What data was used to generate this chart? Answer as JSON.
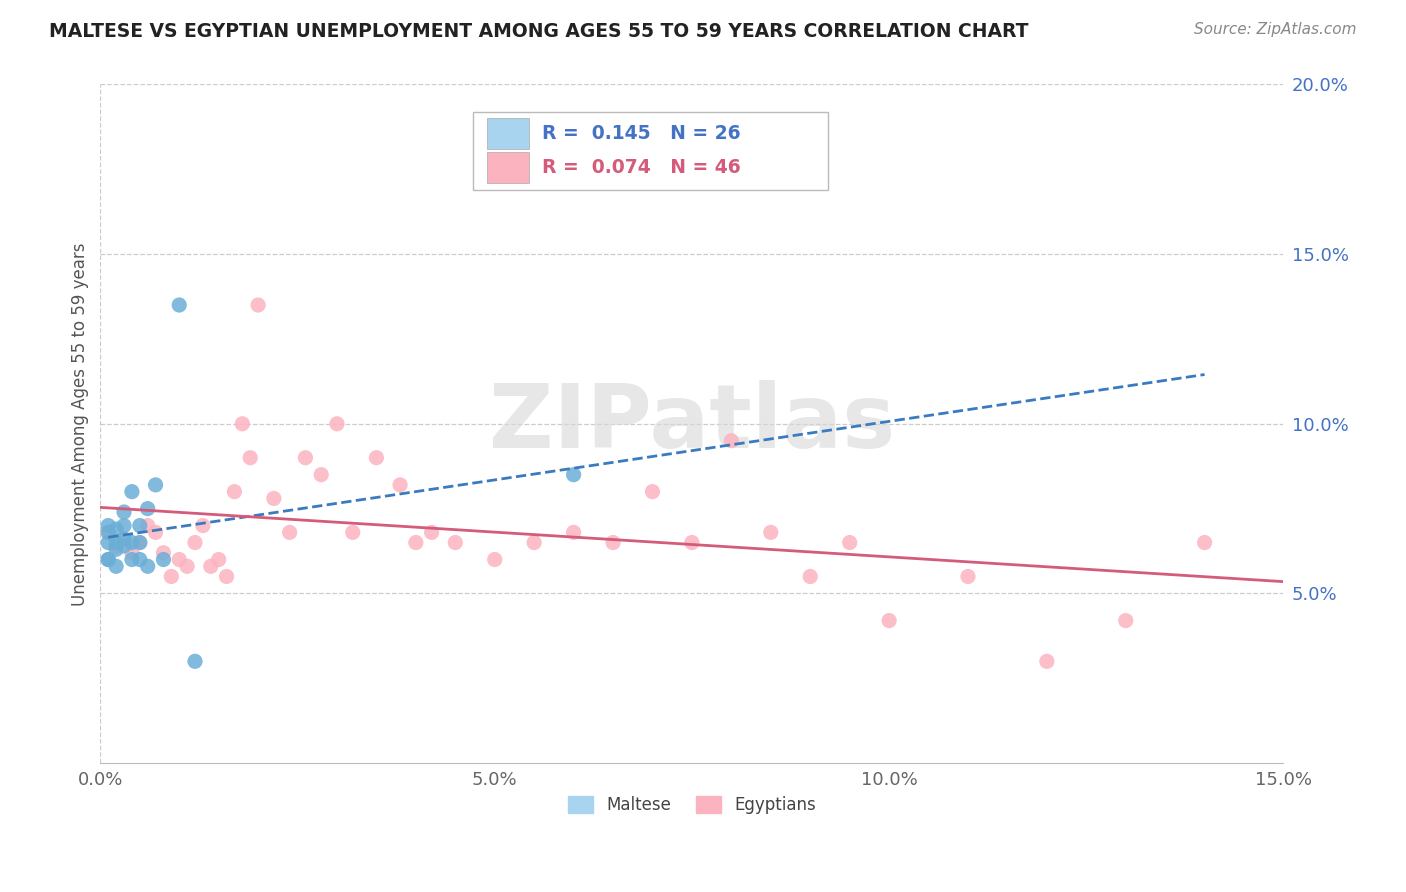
{
  "title": "MALTESE VS EGYPTIAN UNEMPLOYMENT AMONG AGES 55 TO 59 YEARS CORRELATION CHART",
  "source": "Source: ZipAtlas.com",
  "ylabel": "Unemployment Among Ages 55 to 59 years",
  "xlim": [
    0.0,
    0.15
  ],
  "ylim": [
    0.0,
    0.2
  ],
  "xticks": [
    0.0,
    0.05,
    0.1,
    0.15
  ],
  "xticklabels": [
    "0.0%",
    "5.0%",
    "10.0%",
    "15.0%"
  ],
  "yticks": [
    0.05,
    0.1,
    0.15,
    0.2
  ],
  "yticklabels": [
    "5.0%",
    "10.0%",
    "15.0%",
    "20.0%"
  ],
  "maltese_R": 0.145,
  "maltese_N": 26,
  "egyptian_R": 0.074,
  "egyptian_N": 46,
  "maltese_color": "#6baed6",
  "egyptian_color": "#fcb3c0",
  "trend_maltese_color": "#3a7bbf",
  "trend_egyptian_color": "#d45b7a",
  "watermark_color": "#d8d8d8",
  "maltese_x": [
    0.001,
    0.001,
    0.001,
    0.001,
    0.001,
    0.002,
    0.002,
    0.002,
    0.002,
    0.003,
    0.003,
    0.003,
    0.003,
    0.004,
    0.004,
    0.004,
    0.005,
    0.005,
    0.005,
    0.006,
    0.006,
    0.007,
    0.008,
    0.01,
    0.012,
    0.06
  ],
  "maltese_y": [
    0.06,
    0.065,
    0.068,
    0.07,
    0.06,
    0.058,
    0.063,
    0.065,
    0.069,
    0.064,
    0.07,
    0.074,
    0.066,
    0.065,
    0.06,
    0.08,
    0.06,
    0.065,
    0.07,
    0.058,
    0.075,
    0.082,
    0.06,
    0.135,
    0.03,
    0.085
  ],
  "egyptian_x": [
    0.001,
    0.002,
    0.003,
    0.004,
    0.005,
    0.006,
    0.007,
    0.008,
    0.009,
    0.01,
    0.011,
    0.012,
    0.013,
    0.014,
    0.015,
    0.016,
    0.017,
    0.018,
    0.019,
    0.02,
    0.022,
    0.024,
    0.026,
    0.028,
    0.03,
    0.032,
    0.035,
    0.038,
    0.04,
    0.042,
    0.045,
    0.05,
    0.055,
    0.06,
    0.065,
    0.07,
    0.075,
    0.08,
    0.085,
    0.09,
    0.095,
    0.1,
    0.11,
    0.12,
    0.13,
    0.14
  ],
  "egyptian_y": [
    0.068,
    0.064,
    0.066,
    0.062,
    0.065,
    0.07,
    0.068,
    0.062,
    0.055,
    0.06,
    0.058,
    0.065,
    0.07,
    0.058,
    0.06,
    0.055,
    0.08,
    0.1,
    0.09,
    0.135,
    0.078,
    0.068,
    0.09,
    0.085,
    0.1,
    0.068,
    0.09,
    0.082,
    0.065,
    0.068,
    0.065,
    0.06,
    0.065,
    0.068,
    0.065,
    0.08,
    0.065,
    0.095,
    0.068,
    0.055,
    0.065,
    0.042,
    0.055,
    0.03,
    0.042,
    0.065
  ],
  "legend_maltese_color": "#a8d4f0",
  "legend_egyptian_color": "#fcb3c0",
  "legend_text_maltese": "#4472c4",
  "legend_text_egyptian": "#d45b7a"
}
